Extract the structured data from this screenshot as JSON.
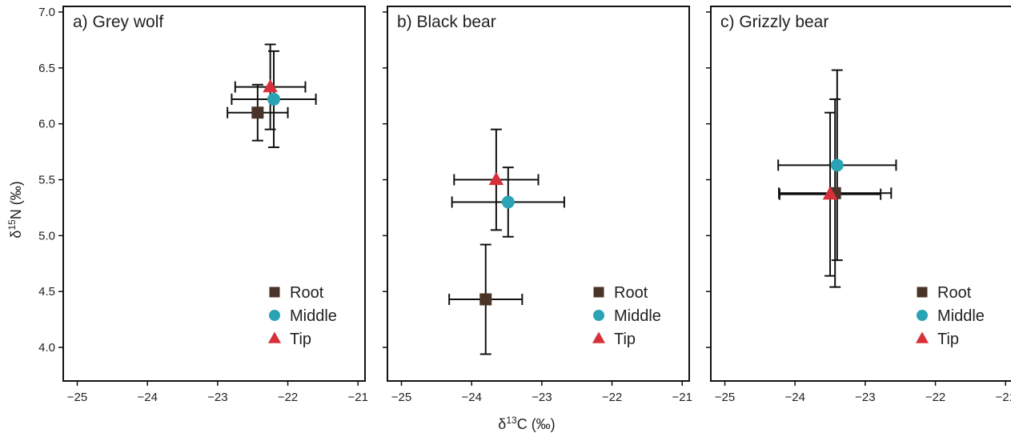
{
  "chart_data": {
    "type": "scatter",
    "ylabel": "δ15N (‰)",
    "xlabel": "δ13C (‰)",
    "xlim": [
      -25.2,
      -20.9
    ],
    "ylim": [
      3.7,
      7.05
    ],
    "xticks": [
      -25,
      -24,
      -23,
      -22,
      -21
    ],
    "xtick_labels": [
      "−25",
      "−24",
      "−23",
      "−22",
      "−21"
    ],
    "yticks": [
      4.0,
      4.5,
      5.0,
      5.5,
      6.0,
      6.5,
      7.0
    ],
    "ytick_labels": [
      "4.0",
      "4.5",
      "5.0",
      "5.5",
      "6.0",
      "6.5",
      "7.0"
    ],
    "legend_position": "bottom-right",
    "legend": [
      {
        "name": "Root",
        "marker": "square",
        "color": "#4a3328"
      },
      {
        "name": "Middle",
        "marker": "circle",
        "color": "#2aa3b5"
      },
      {
        "name": "Tip",
        "marker": "triangle",
        "color": "#d8303b"
      }
    ],
    "panels": [
      {
        "title": "a) Grey wolf",
        "points": [
          {
            "series": "Root",
            "x": -22.43,
            "y": 6.1,
            "xerr": 0.43,
            "yerr": 0.25
          },
          {
            "series": "Middle",
            "x": -22.2,
            "y": 6.22,
            "xerr": 0.6,
            "yerr": 0.43
          },
          {
            "series": "Tip",
            "x": -22.25,
            "y": 6.33,
            "xerr": 0.5,
            "yerr": 0.38
          }
        ]
      },
      {
        "title": "b) Black bear",
        "points": [
          {
            "series": "Root",
            "x": -23.8,
            "y": 4.43,
            "xerr": 0.52,
            "yerr": 0.49
          },
          {
            "series": "Middle",
            "x": -23.48,
            "y": 5.3,
            "xerr": 0.8,
            "yerr": 0.31
          },
          {
            "series": "Tip",
            "x": -23.65,
            "y": 5.5,
            "xerr": 0.6,
            "yerr": 0.45
          }
        ]
      },
      {
        "title": "c) Grizzly bear",
        "points": [
          {
            "series": "Root",
            "x": -23.43,
            "y": 5.38,
            "xerr": 0.8,
            "yerr": 0.84
          },
          {
            "series": "Middle",
            "x": -23.4,
            "y": 5.63,
            "xerr": 0.84,
            "yerr": 0.85
          },
          {
            "series": "Tip",
            "x": -23.5,
            "y": 5.37,
            "xerr": 0.72,
            "yerr": 0.73
          }
        ]
      }
    ]
  }
}
